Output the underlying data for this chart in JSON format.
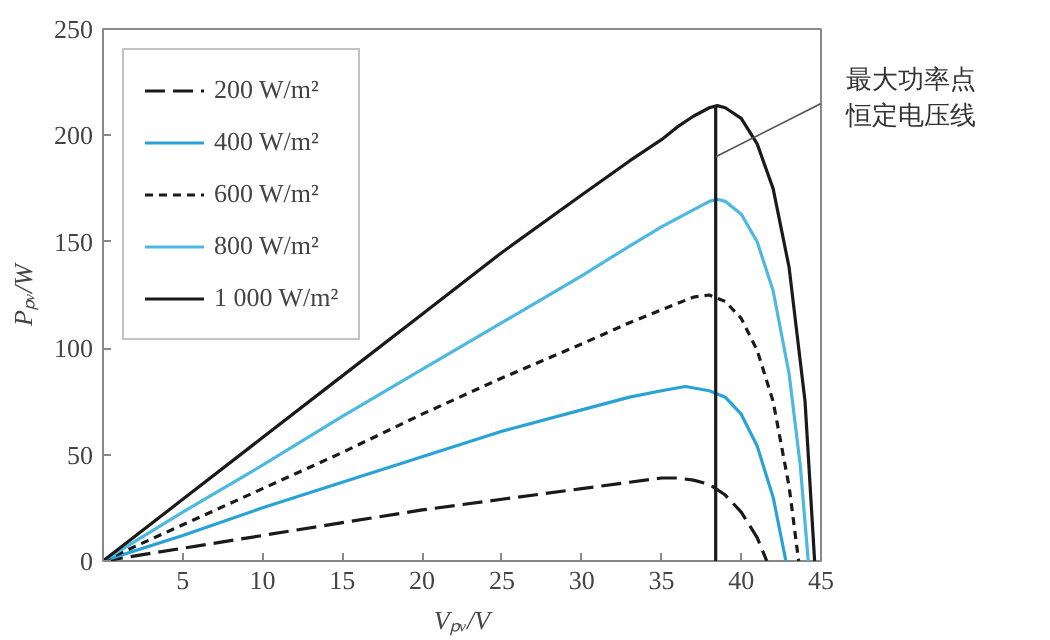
{
  "chart_data": {
    "type": "line",
    "xlabel": "Vₚᵥ/V",
    "ylabel": "Pₚᵥ/W",
    "xlim": [
      0,
      45
    ],
    "ylim": [
      0,
      250
    ],
    "xticks": [
      {
        "value": 0,
        "label": null
      },
      5,
      10,
      15,
      20,
      25,
      30,
      35,
      40,
      45
    ],
    "yticks": [
      0,
      50,
      100,
      150,
      200,
      250
    ],
    "grid": false,
    "legend": "top left",
    "marker": "none",
    "annotations": [
      {
        "text": "最大功率点恒定电压线",
        "x": 38.4,
        "y": 190
      }
    ],
    "series": [
      {
        "name": "200 W/m²",
        "color": "#1a1a1a",
        "line_style": "dashed",
        "x": [
          0,
          5,
          10,
          15,
          20,
          25,
          30,
          33,
          35,
          36,
          37,
          38,
          39,
          40,
          41,
          41.6
        ],
        "values": [
          0,
          6,
          12,
          18,
          24,
          29,
          34,
          37,
          39,
          39,
          38,
          36,
          31,
          23,
          11,
          0
        ]
      },
      {
        "name": "400 W/m²",
        "color": "#29a3d6",
        "line_style": "solid",
        "x": [
          0,
          5,
          10,
          15,
          20,
          25,
          30,
          33,
          35,
          36.5,
          38,
          39,
          40,
          41,
          42,
          42.8
        ],
        "values": [
          0,
          12,
          25,
          37,
          49,
          61,
          71,
          77,
          80,
          82,
          80,
          77,
          69,
          54,
          30,
          0
        ]
      },
      {
        "name": "600 W/m²",
        "color": "#1a1a1a",
        "line_style": "dotted",
        "x": [
          0,
          5,
          10,
          15,
          20,
          25,
          30,
          33,
          35,
          36,
          37,
          38,
          39,
          40,
          41,
          42,
          43,
          43.6
        ],
        "values": [
          0,
          17,
          34,
          51,
          69,
          86,
          102,
          112,
          118,
          121,
          124,
          125,
          122,
          114,
          99,
          75,
          35,
          0
        ]
      },
      {
        "name": "800 W/m²",
        "color": "#4db8e0",
        "line_style": "solid",
        "x": [
          0,
          5,
          10,
          15,
          20,
          25,
          30,
          33,
          35,
          37,
          38,
          38.5,
          39,
          40,
          41,
          42,
          43,
          43.7,
          44.2
        ],
        "values": [
          0,
          23,
          45,
          68,
          90,
          112,
          134,
          148,
          157,
          165,
          169,
          170,
          169,
          163,
          150,
          127,
          88,
          45,
          0
        ]
      },
      {
        "name": "1 000 W/m²",
        "color": "#1a1a1a",
        "line_style": "solid",
        "x": [
          0,
          5,
          10,
          15,
          20,
          25,
          30,
          33,
          35,
          36,
          37,
          38,
          38.5,
          39,
          40,
          41,
          42,
          43,
          44,
          44.6
        ],
        "values": [
          0,
          29,
          58,
          87,
          116,
          145,
          172,
          188,
          198,
          204,
          209,
          213,
          214,
          213,
          208,
          196,
          175,
          138,
          75,
          0
        ]
      },
      {
        "color": "#1a1a1a",
        "line_style": "solid",
        "x": [
          38.4,
          38.4
        ],
        "values": [
          0,
          214
        ]
      }
    ]
  }
}
